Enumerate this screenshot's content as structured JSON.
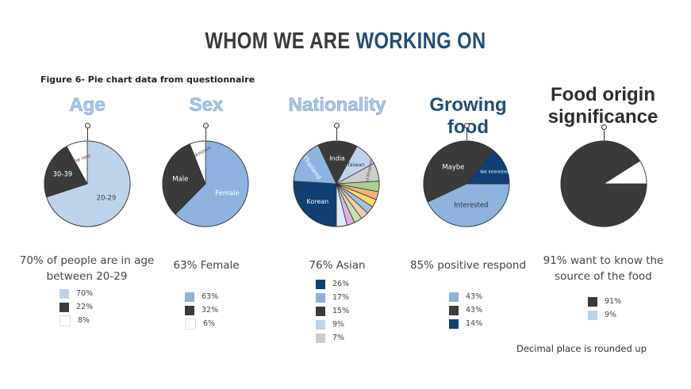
{
  "page": {
    "title_part1": "WHOM WE ARE",
    "title_part2": "WORKING ON",
    "figure_caption": "Figure 6- Pie chart data from questionnaire",
    "note": "Decimal place is rounded up"
  },
  "colors": {
    "light_blue": "#bdd3ea",
    "mid_blue": "#8db3de",
    "dark_navy": "#0f3f73",
    "dark_gray": "#3b3b3b",
    "white": "#ffffff",
    "gray": "#cccccc"
  },
  "summaries": {
    "age": "70% of people are in age between 20-29",
    "sex": "63% Female",
    "nationality": "76% Asian",
    "growing": "85% positive respond",
    "origin": "91% want to know the source of the food"
  },
  "chart_data": [
    {
      "id": "age",
      "type": "pie",
      "title": "Age",
      "slices": [
        {
          "label": "20-29",
          "value": 70,
          "color": "#bdd3ea",
          "text_color": "#444444"
        },
        {
          "label": "30-39",
          "value": 22,
          "color": "#3b3b3b",
          "text_color": "#ffffff"
        },
        {
          "label": "The rest",
          "value": 8,
          "color": "#ffffff",
          "text_color": "#8b2e2e"
        }
      ],
      "legend": [
        "70%",
        "22%",
        "8%"
      ]
    },
    {
      "id": "sex",
      "type": "pie",
      "title": "Sex",
      "slices": [
        {
          "label": "Female",
          "value": 63,
          "color": "#8db3de",
          "text_color": "#ffffff"
        },
        {
          "label": "Male",
          "value": 32,
          "color": "#3b3b3b",
          "text_color": "#ffffff"
        },
        {
          "label": "Unknown",
          "value": 6,
          "color": "#ffffff",
          "text_color": "#444444"
        }
      ],
      "legend": [
        "63%",
        "32%",
        "6%"
      ]
    },
    {
      "id": "nationality",
      "type": "pie",
      "title": "Nationality",
      "slices": [
        {
          "label": "Korean",
          "value": 26,
          "color": "#0f3f73",
          "text_color": "#ffffff"
        },
        {
          "label": "Thailand",
          "value": 17,
          "color": "#8db3de",
          "text_color": "#ffffff"
        },
        {
          "label": "India",
          "value": 15,
          "color": "#3b3b3b",
          "text_color": "#ffffff"
        },
        {
          "label": "Taiwan",
          "value": 9,
          "color": "#bdd3ea",
          "text_color": "#333333"
        },
        {
          "label": "United Kingdom",
          "value": 7,
          "color": "#cccccc",
          "text_color": "#444444"
        },
        {
          "label": "",
          "value": 4,
          "color": "#a9d08e",
          "text_color": "#333333"
        },
        {
          "label": "",
          "value": 3,
          "color": "#f4b183",
          "text_color": "#333333"
        },
        {
          "label": "",
          "value": 3,
          "color": "#ffd966",
          "text_color": "#333333"
        },
        {
          "label": "",
          "value": 3,
          "color": "#9dc3e6",
          "text_color": "#333333"
        },
        {
          "label": "",
          "value": 3,
          "color": "#f8cbad",
          "text_color": "#333333"
        },
        {
          "label": "",
          "value": 3,
          "color": "#c5e0b4",
          "text_color": "#333333"
        },
        {
          "label": "",
          "value": 3,
          "color": "#d9b3d9",
          "text_color": "#333333"
        },
        {
          "label": "",
          "value": 4,
          "color": "#deebf7",
          "text_color": "#333333"
        }
      ],
      "legend": [
        "26%",
        "17%",
        "15%",
        "9%",
        "7%"
      ],
      "legend_colors": [
        "#0f3f73",
        "#8db3de",
        "#3b3b3b",
        "#bdd3ea",
        "#cccccc"
      ]
    },
    {
      "id": "growing",
      "type": "pie",
      "title": "Growing food",
      "slices": [
        {
          "label": "Interested",
          "value": 43,
          "color": "#8db3de",
          "text_color": "#333333"
        },
        {
          "label": "Maybe",
          "value": 43,
          "color": "#3b3b3b",
          "text_color": "#ffffff"
        },
        {
          "label": "Not Interested",
          "value": 14,
          "color": "#0f3f73",
          "text_color": "#ffffff"
        }
      ],
      "legend": [
        "43%",
        "43%",
        "14%"
      ]
    },
    {
      "id": "origin",
      "type": "pie",
      "title": "Food origin significance",
      "slices": [
        {
          "label": "",
          "value": 91,
          "color": "#3b3b3b",
          "text_color": "#ffffff"
        },
        {
          "label": "",
          "value": 9,
          "color": "#ffffff",
          "text_color": "#333333"
        }
      ],
      "legend": [
        "91%",
        "9%"
      ],
      "legend_colors": [
        "#3b3b3b",
        "#bdd3ea"
      ]
    }
  ]
}
